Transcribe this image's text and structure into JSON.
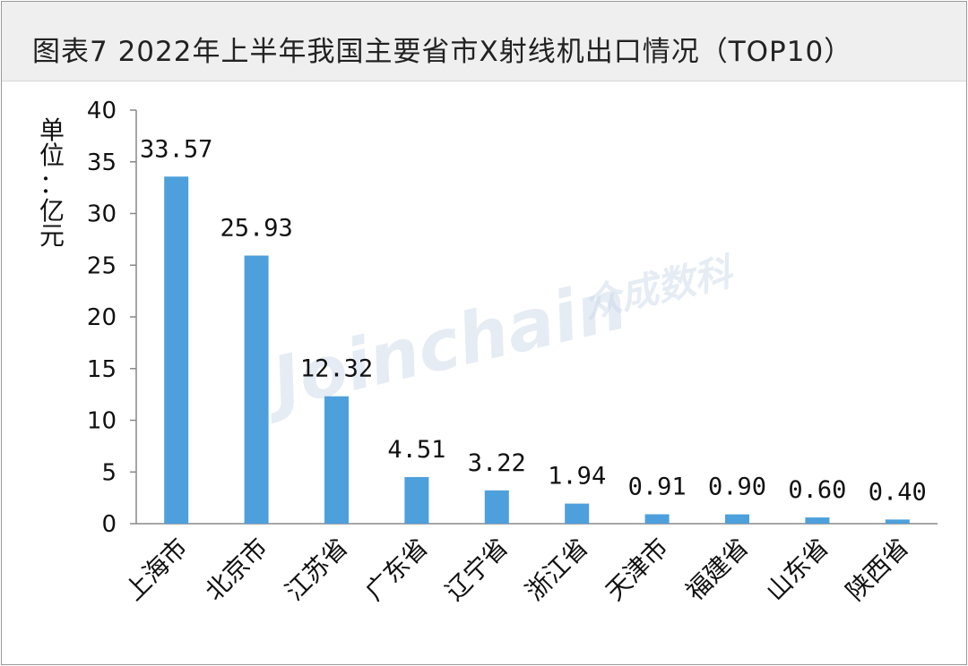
{
  "header": {
    "title": "图表7   2022年上半年我国主要省市X射线机出口情况（TOP10）"
  },
  "watermark": {
    "text": "Joinchain",
    "brand": "众成数科"
  },
  "colors": {
    "bar": "#4da0dc",
    "axis": "#888888",
    "text": "#111111"
  },
  "chart_data": {
    "type": "bar",
    "categories": [
      "上海市",
      "北京市",
      "江苏省",
      "广东省",
      "辽宁省",
      "浙江省",
      "天津市",
      "福建省",
      "山东省",
      "陕西省"
    ],
    "values": [
      33.57,
      25.93,
      12.32,
      4.51,
      3.22,
      1.94,
      0.91,
      0.9,
      0.6,
      0.4
    ],
    "data_labels": [
      "33.57",
      "25.93",
      "12.32",
      "4.51",
      "3.22",
      "1.94",
      "0.91",
      "0.90",
      "0.60",
      "0.40"
    ],
    "ylabel": "单位：亿元",
    "ylim": [
      0,
      40
    ],
    "yticks": [
      0,
      5,
      10,
      15,
      20,
      25,
      30,
      35,
      40
    ],
    "grid": false,
    "legend": "none"
  }
}
